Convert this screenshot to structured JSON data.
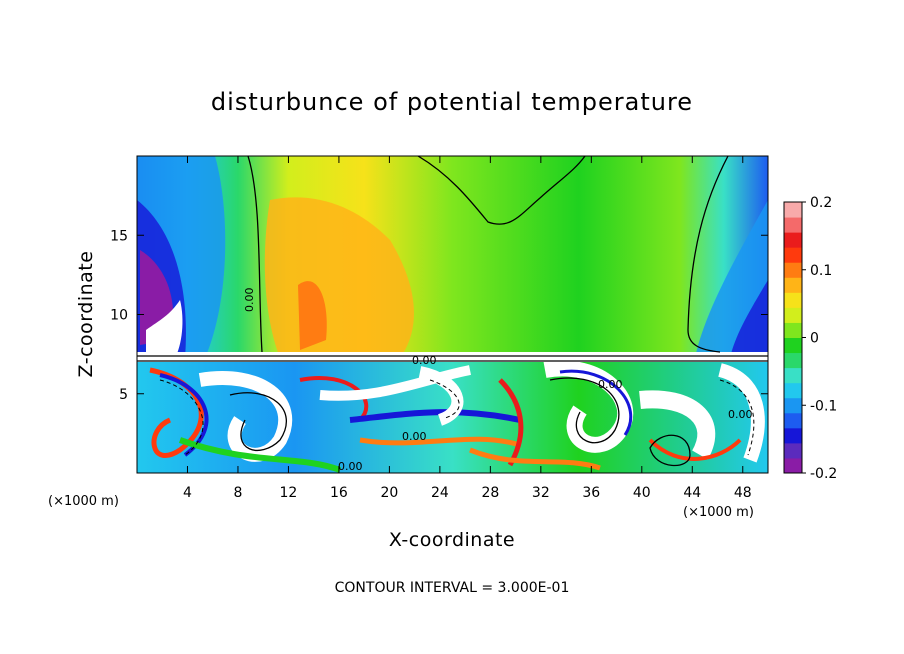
{
  "chart_data": {
    "type": "heatmap",
    "title": "disturbunce of potential temperature",
    "xlabel": "X-coordinate",
    "ylabel": "Z-coordinate",
    "x_unit_left": "(×1000 m)",
    "x_unit_right": "(×1000 m)",
    "xlim": [
      0,
      50
    ],
    "ylim": [
      0,
      20
    ],
    "x_ticks": [
      4,
      8,
      12,
      16,
      20,
      24,
      28,
      32,
      36,
      40,
      44,
      48
    ],
    "y_ticks": [
      5,
      10,
      15
    ],
    "colorbar": {
      "range": [
        -0.2,
        0.2
      ],
      "ticks": [
        "-0.2",
        "-0.1",
        "0",
        "0.1",
        "0.2"
      ],
      "colors": [
        "#8a1ca6",
        "#5b2bbd",
        "#1616d8",
        "#1d5cf0",
        "#1a96f2",
        "#22c8ee",
        "#39e0c6",
        "#2ad86a",
        "#1fd21f",
        "#7fe61e",
        "#d2ee1c",
        "#f6e21a",
        "#ffb417",
        "#ff7c12",
        "#ff3a0d",
        "#ea1c1c",
        "#f46a6a",
        "#f8aaaa"
      ]
    },
    "contour_labels": [
      "0.00",
      "0.00",
      "0.00",
      "0.00",
      "0.00",
      "0.00"
    ],
    "footer": "CONTOUR INTERVAL = 3.000E-01"
  }
}
